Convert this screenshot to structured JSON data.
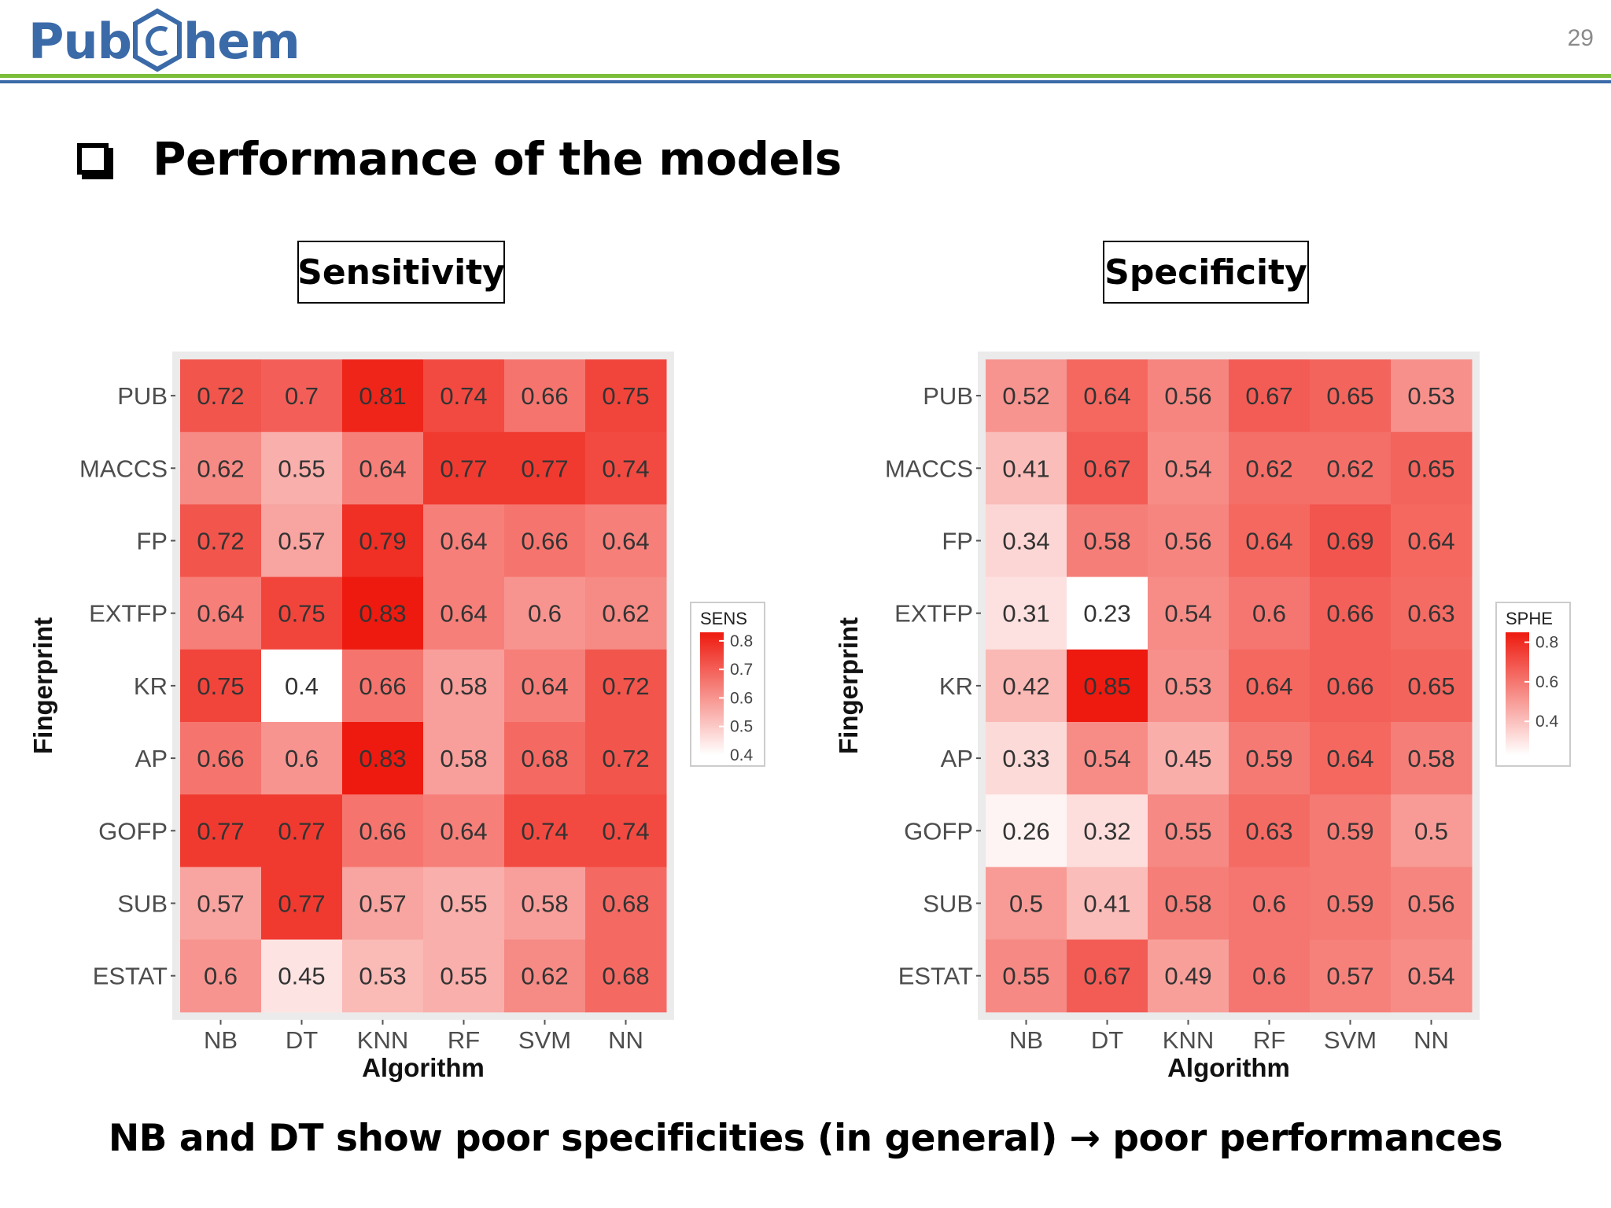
{
  "header": {
    "logo_text_left": "Pub",
    "logo_text_right": "hem",
    "page_number": "29"
  },
  "slide": {
    "title": "Performance of the models",
    "footer_text": "NB and DT show poor specificities (in general) → poor performances"
  },
  "colors": {
    "low": "#ffffff",
    "high": "#ee1a0f",
    "brand_blue": "#3b6aa8",
    "brand_green": "#7cbd3a"
  },
  "chart_data": [
    {
      "type": "heatmap",
      "title": "Sensitivity",
      "xlabel": "Algorithm",
      "ylabel": "Fingerprint",
      "x": [
        "NB",
        "DT",
        "KNN",
        "RF",
        "SVM",
        "NN"
      ],
      "y": [
        "PUB",
        "MACCS",
        "FP",
        "EXTFP",
        "KR",
        "AP",
        "GOFP",
        "SUB",
        "ESTAT"
      ],
      "values": [
        [
          0.72,
          0.7,
          0.81,
          0.74,
          0.66,
          0.75
        ],
        [
          0.62,
          0.55,
          0.64,
          0.77,
          0.77,
          0.74
        ],
        [
          0.72,
          0.57,
          0.79,
          0.64,
          0.66,
          0.64
        ],
        [
          0.64,
          0.75,
          0.83,
          0.64,
          0.6,
          0.62
        ],
        [
          0.75,
          0.4,
          0.66,
          0.58,
          0.64,
          0.72
        ],
        [
          0.66,
          0.6,
          0.83,
          0.58,
          0.68,
          0.72
        ],
        [
          0.77,
          0.77,
          0.66,
          0.64,
          0.74,
          0.74
        ],
        [
          0.57,
          0.77,
          0.57,
          0.55,
          0.58,
          0.68
        ],
        [
          0.6,
          0.45,
          0.53,
          0.55,
          0.62,
          0.68
        ]
      ],
      "legend": {
        "title": "SENS",
        "ticks": [
          "0.8",
          "0.7",
          "0.6",
          "0.5",
          "0.4"
        ],
        "tick_values": [
          0.8,
          0.7,
          0.6,
          0.5,
          0.4
        ],
        "range": [
          0.4,
          0.83
        ]
      }
    },
    {
      "type": "heatmap",
      "title": "Specificity",
      "xlabel": "Algorithm",
      "ylabel": "Fingerprint",
      "x": [
        "NB",
        "DT",
        "KNN",
        "RF",
        "SVM",
        "NN"
      ],
      "y": [
        "PUB",
        "MACCS",
        "FP",
        "EXTFP",
        "KR",
        "AP",
        "GOFP",
        "SUB",
        "ESTAT"
      ],
      "values": [
        [
          0.52,
          0.64,
          0.56,
          0.67,
          0.65,
          0.53
        ],
        [
          0.41,
          0.67,
          0.54,
          0.62,
          0.62,
          0.65
        ],
        [
          0.34,
          0.58,
          0.56,
          0.64,
          0.69,
          0.64
        ],
        [
          0.31,
          0.23,
          0.54,
          0.6,
          0.66,
          0.63
        ],
        [
          0.42,
          0.85,
          0.53,
          0.64,
          0.66,
          0.65
        ],
        [
          0.33,
          0.54,
          0.45,
          0.59,
          0.64,
          0.58
        ],
        [
          0.26,
          0.32,
          0.55,
          0.63,
          0.59,
          0.5
        ],
        [
          0.5,
          0.41,
          0.58,
          0.6,
          0.59,
          0.56
        ],
        [
          0.55,
          0.67,
          0.49,
          0.6,
          0.57,
          0.54
        ]
      ],
      "legend": {
        "title": "SPHE",
        "ticks": [
          "0.8",
          "0.6",
          "0.4"
        ],
        "tick_values": [
          0.8,
          0.6,
          0.4
        ],
        "range": [
          0.23,
          0.85
        ]
      }
    }
  ]
}
